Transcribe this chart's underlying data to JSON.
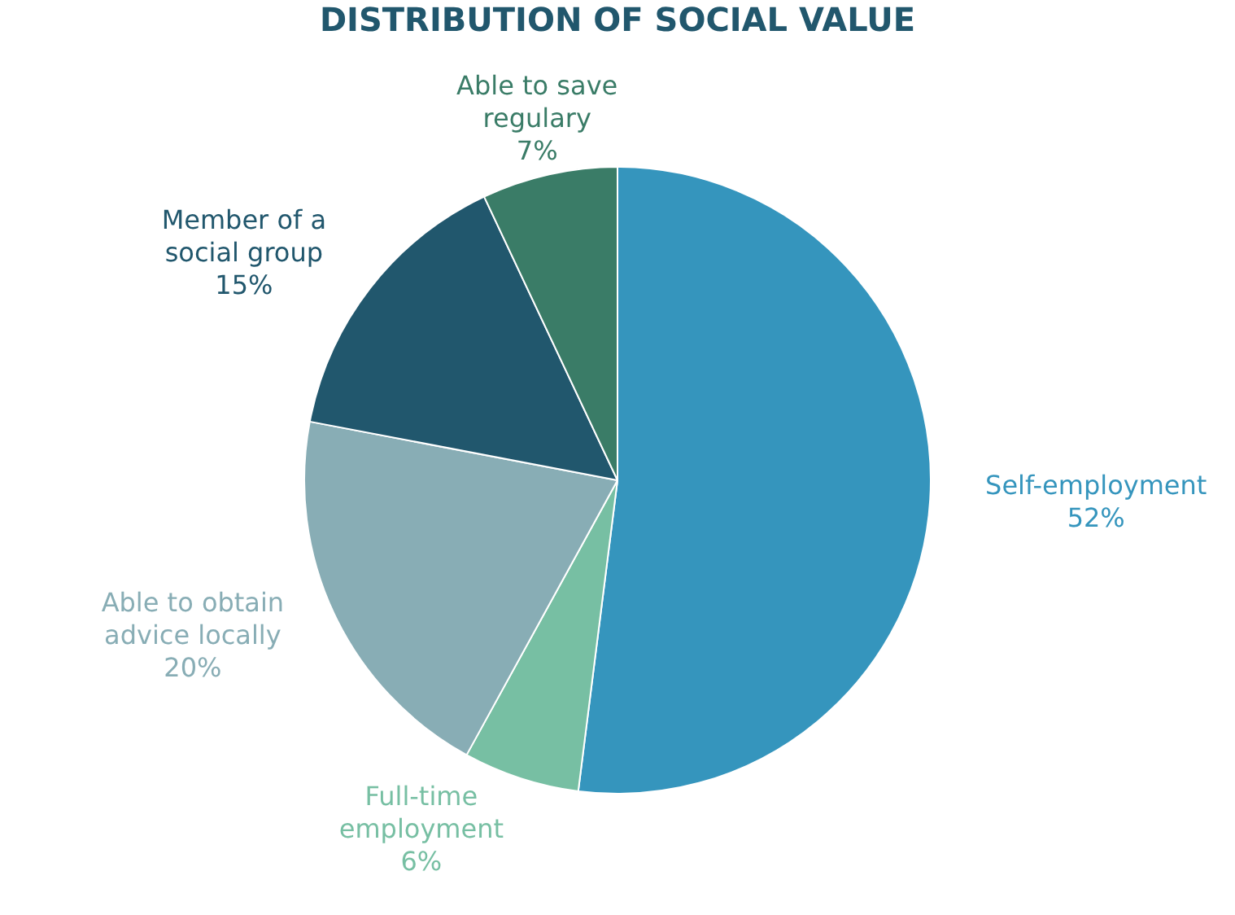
{
  "chart_data": {
    "type": "pie",
    "title": "DISTRIBUTION OF SOCIAL VALUE",
    "categories": [
      "Self-employment",
      "Full-time employment",
      "Able to obtain advice locally",
      "Member of a social group",
      "Able to save regulary"
    ],
    "values": [
      52,
      6,
      20,
      15,
      7
    ],
    "colors": [
      "#3595bd",
      "#77bfa3",
      "#88adb5",
      "#21576d",
      "#3a7c67"
    ],
    "value_labels": [
      "52%",
      "6%",
      "20%",
      "15%",
      "7%"
    ],
    "legend": false
  }
}
